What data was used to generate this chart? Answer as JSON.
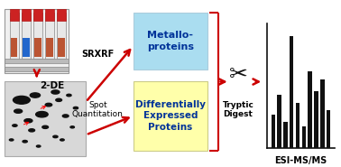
{
  "bg_color": "#ffffff",
  "arrow_color": "#cc0000",
  "box1_facecolor": "#aaddf0",
  "box2_facecolor": "#ffffaa",
  "box1_text": "Metallo-\nproteins",
  "box2_text": "Differentially\nExpressed\nProteins",
  "label_2de": "2-DE",
  "label_srxrf": "SRXRF",
  "label_spot": "Spot\nQuantitation",
  "label_tryptic": "Tryptic\nDigest",
  "label_esi": "ESI-MS/MS",
  "ms_bars": [
    0.28,
    0.45,
    0.22,
    0.95,
    0.38,
    0.18,
    0.65,
    0.48,
    0.58,
    0.32
  ],
  "ms_bar_color": "#111111",
  "text_color": "#000000",
  "box_label_color": "#003399",
  "tube_colors": [
    "#cc2222",
    "#cc2222",
    "#cc2222",
    "#cc2222"
  ],
  "tube_liquid_colors": [
    "#bb5533",
    "#2266cc",
    "#bb5533",
    "#bb5533"
  ]
}
